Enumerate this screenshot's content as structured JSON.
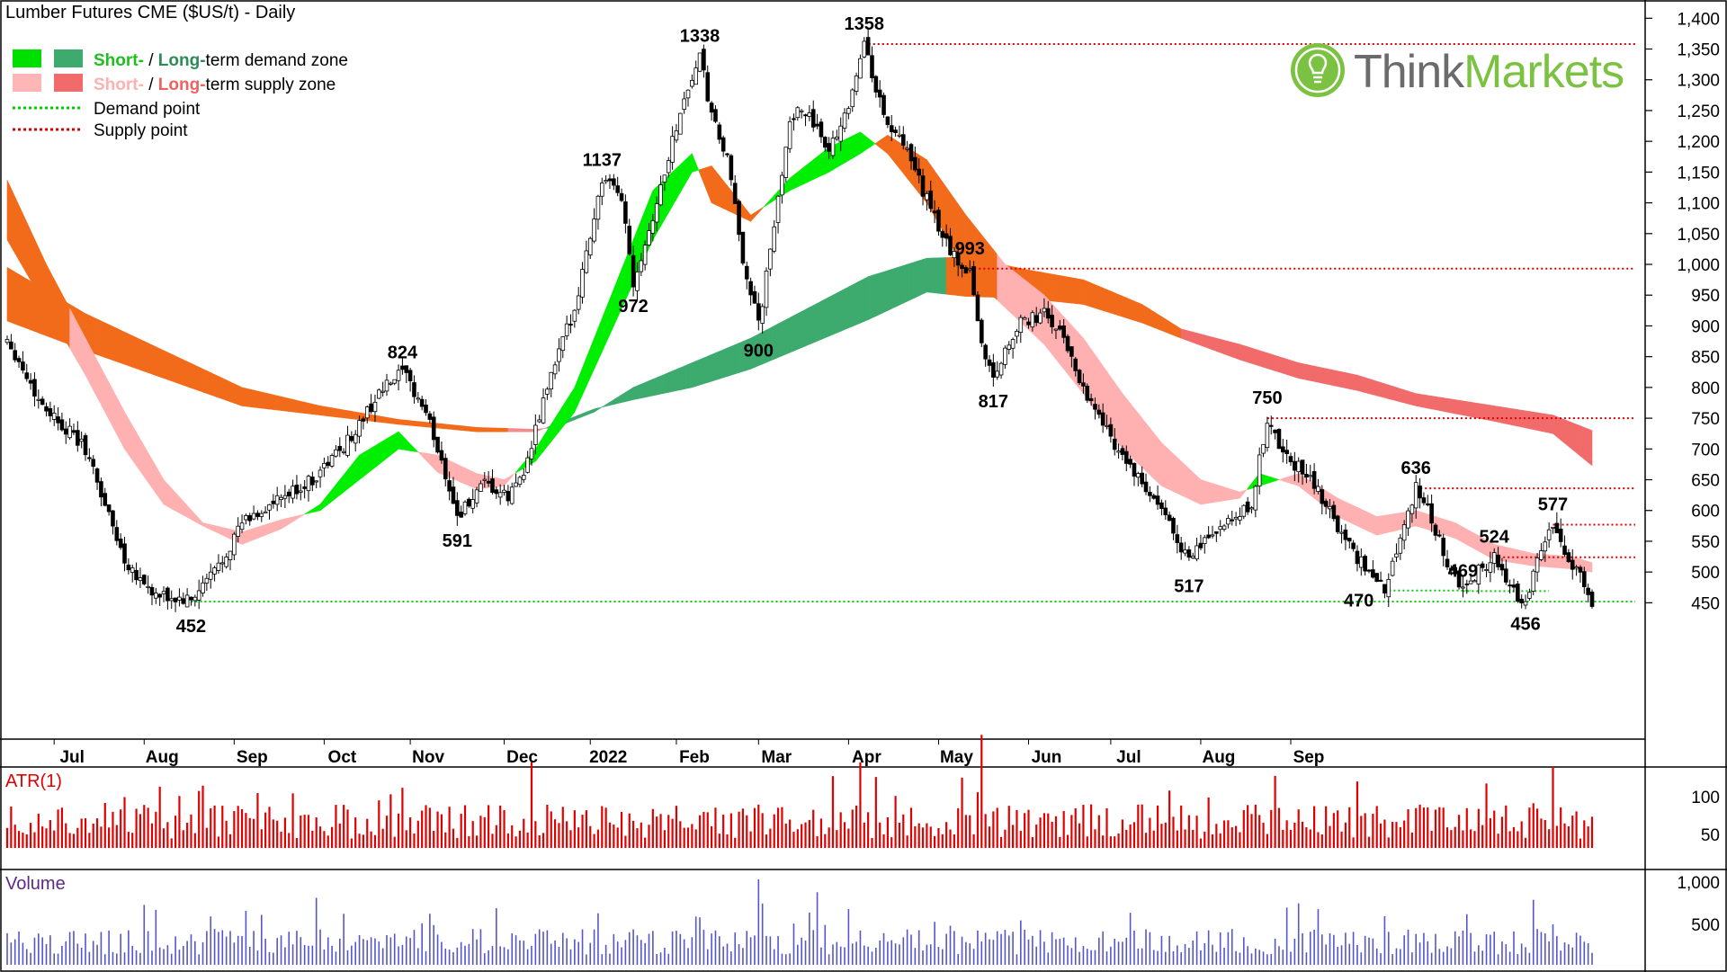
{
  "title": "Lumber Futures CME ($US/t) - Daily",
  "brand": {
    "name_part1": "Think",
    "name_part2": "Markets",
    "color1": "#6b6b6b",
    "color2": "#7cc242"
  },
  "legend": [
    {
      "swatches": [
        "#00e000",
        "#3daa6e"
      ],
      "text_a": "Short-",
      "sep": " / ",
      "text_b": "Long-",
      "rest": "term demand zone",
      "color_a": "#1fbf1f",
      "color_b": "#2e8b57"
    },
    {
      "swatches": [
        "#ffb6b6",
        "#f26b6b"
      ],
      "text_a": "Short-",
      "sep": " / ",
      "text_b": "Long-",
      "rest": "term supply zone",
      "color_a": "#ffb0b0",
      "color_b": "#f26060"
    },
    {
      "line": "demand",
      "color": "#00cc00",
      "text": "Demand point"
    },
    {
      "line": "supply",
      "color": "#dd0000",
      "text": "Supply point"
    }
  ],
  "colors": {
    "short_demand": "#00ee00",
    "long_demand": "#3daa6e",
    "short_supply": "#ffb0b0",
    "long_supply": "#f26b6b",
    "cross_orange": "#f26b1a",
    "atr": "#e00000",
    "volume": "#5555cc"
  },
  "chart_data": {
    "type": "candlestick",
    "x_labels": [
      "Jul",
      "Aug",
      "Sep",
      "Oct",
      "Nov",
      "Dec",
      "2022",
      "Feb",
      "Mar",
      "Apr",
      "May",
      "Jun",
      "Jul",
      "Aug",
      "Sep"
    ],
    "y_ticks": [
      "1,400",
      "1,350",
      "1,300",
      "1,250",
      "1,200",
      "1,150",
      "1,100",
      "1,050",
      "1,000",
      "950",
      "900",
      "850",
      "800",
      "750",
      "700",
      "650",
      "600",
      "550",
      "500",
      "450"
    ],
    "ylim": [
      410,
      1400
    ],
    "price_path": [
      [
        0,
        880
      ],
      [
        8,
        780
      ],
      [
        20,
        700
      ],
      [
        30,
        520
      ],
      [
        38,
        460
      ],
      [
        47,
        452
      ],
      [
        55,
        520
      ],
      [
        60,
        580
      ],
      [
        68,
        610
      ],
      [
        78,
        650
      ],
      [
        88,
        720
      ],
      [
        95,
        790
      ],
      [
        101,
        824
      ],
      [
        107,
        760
      ],
      [
        112,
        660
      ],
      [
        115,
        591
      ],
      [
        122,
        640
      ],
      [
        128,
        620
      ],
      [
        133,
        680
      ],
      [
        138,
        800
      ],
      [
        145,
        930
      ],
      [
        152,
        1137
      ],
      [
        157,
        1110
      ],
      [
        160,
        972
      ],
      [
        166,
        1100
      ],
      [
        172,
        1250
      ],
      [
        177,
        1338
      ],
      [
        180,
        1240
      ],
      [
        184,
        1170
      ],
      [
        188,
        1010
      ],
      [
        192,
        900
      ],
      [
        196,
        1060
      ],
      [
        200,
        1240
      ],
      [
        205,
        1250
      ],
      [
        209,
        1180
      ],
      [
        214,
        1240
      ],
      [
        219,
        1358
      ],
      [
        224,
        1240
      ],
      [
        230,
        1180
      ],
      [
        238,
        1060
      ],
      [
        243,
        1000
      ],
      [
        246,
        993
      ],
      [
        249,
        870
      ],
      [
        252,
        817
      ],
      [
        258,
        900
      ],
      [
        265,
        920
      ],
      [
        270,
        880
      ],
      [
        275,
        800
      ],
      [
        282,
        720
      ],
      [
        290,
        640
      ],
      [
        297,
        580
      ],
      [
        302,
        517
      ],
      [
        307,
        560
      ],
      [
        313,
        580
      ],
      [
        318,
        610
      ],
      [
        322,
        750
      ],
      [
        326,
        690
      ],
      [
        332,
        660
      ],
      [
        338,
        600
      ],
      [
        343,
        540
      ],
      [
        348,
        500
      ],
      [
        352,
        470
      ],
      [
        356,
        560
      ],
      [
        360,
        636
      ],
      [
        364,
        590
      ],
      [
        368,
        510
      ],
      [
        372,
        469
      ],
      [
        376,
        505
      ],
      [
        380,
        524
      ],
      [
        384,
        470
      ],
      [
        388,
        456
      ],
      [
        392,
        540
      ],
      [
        395,
        577
      ],
      [
        398,
        520
      ],
      [
        402,
        500
      ],
      [
        405,
        452
      ]
    ],
    "annotations": [
      {
        "label": "452",
        "x": 47,
        "y": 452,
        "pos": "below"
      },
      {
        "label": "824",
        "x": 101,
        "y": 824,
        "pos": "above"
      },
      {
        "label": "591",
        "x": 115,
        "y": 591,
        "pos": "below"
      },
      {
        "label": "1137",
        "x": 152,
        "y": 1137,
        "pos": "above"
      },
      {
        "label": "972",
        "x": 160,
        "y": 972,
        "pos": "below"
      },
      {
        "label": "1338",
        "x": 177,
        "y": 1338,
        "pos": "above"
      },
      {
        "label": "900",
        "x": 192,
        "y": 900,
        "pos": "below"
      },
      {
        "label": "1358",
        "x": 219,
        "y": 1358,
        "pos": "above"
      },
      {
        "label": "993",
        "x": 246,
        "y": 993,
        "pos": "above"
      },
      {
        "label": "817",
        "x": 252,
        "y": 817,
        "pos": "below"
      },
      {
        "label": "517",
        "x": 302,
        "y": 517,
        "pos": "below"
      },
      {
        "label": "750",
        "x": 322,
        "y": 750,
        "pos": "above"
      },
      {
        "label": "470",
        "x": 352,
        "y": 470,
        "pos": "left"
      },
      {
        "label": "636",
        "x": 360,
        "y": 636,
        "pos": "above"
      },
      {
        "label": "469",
        "x": 372,
        "y": 469,
        "pos": "above"
      },
      {
        "label": "524",
        "x": 380,
        "y": 524,
        "pos": "above"
      },
      {
        "label": "456",
        "x": 388,
        "y": 456,
        "pos": "below"
      },
      {
        "label": "577",
        "x": 395,
        "y": 577,
        "pos": "above"
      }
    ],
    "supply_points": [
      {
        "value": 1358,
        "from_x": 219
      },
      {
        "value": 993,
        "from_x": 246
      },
      {
        "value": 750,
        "from_x": 322
      },
      {
        "value": 636,
        "from_x": 360
      },
      {
        "value": 577,
        "from_x": 395
      },
      {
        "value": 524,
        "from_x": 380
      }
    ],
    "demand_points": [
      {
        "value": 452,
        "from_x": 47
      },
      {
        "value": 470,
        "from_x": 352
      },
      {
        "value": 469,
        "from_x": 372
      }
    ],
    "long_band": [
      [
        0,
        995,
        908
      ],
      [
        20,
        920,
        860
      ],
      [
        40,
        860,
        815
      ],
      [
        60,
        800,
        770
      ],
      [
        80,
        770,
        755
      ],
      [
        100,
        748,
        740
      ],
      [
        120,
        735,
        728
      ],
      [
        135,
        732,
        728
      ],
      [
        140,
        735,
        740
      ],
      [
        150,
        760,
        765
      ],
      [
        160,
        800,
        780
      ],
      [
        175,
        840,
        800
      ],
      [
        190,
        880,
        830
      ],
      [
        205,
        930,
        870
      ],
      [
        220,
        980,
        910
      ],
      [
        235,
        1010,
        955
      ],
      [
        245,
        1012,
        948
      ],
      [
        260,
        992,
        945
      ],
      [
        275,
        975,
        935
      ],
      [
        290,
        935,
        905
      ],
      [
        300,
        895,
        880
      ],
      [
        315,
        870,
        845
      ],
      [
        330,
        840,
        815
      ],
      [
        345,
        820,
        795
      ],
      [
        360,
        790,
        770
      ],
      [
        380,
        770,
        745
      ],
      [
        395,
        755,
        725
      ],
      [
        405,
        730,
        673
      ]
    ],
    "short_band": [
      [
        0,
        1137,
        1040
      ],
      [
        10,
        1000,
        930
      ],
      [
        20,
        880,
        820
      ],
      [
        30,
        760,
        700
      ],
      [
        40,
        650,
        610
      ],
      [
        50,
        580,
        575
      ],
      [
        60,
        565,
        545
      ],
      [
        70,
        585,
        570
      ],
      [
        80,
        600,
        610
      ],
      [
        90,
        650,
        690
      ],
      [
        100,
        700,
        728
      ],
      [
        110,
        690,
        662
      ],
      [
        120,
        660,
        635
      ],
      [
        127,
        650,
        640
      ],
      [
        135,
        680,
        700
      ],
      [
        145,
        760,
        800
      ],
      [
        155,
        900,
        960
      ],
      [
        165,
        1040,
        1120
      ],
      [
        175,
        1150,
        1180
      ],
      [
        180,
        1160,
        1100
      ],
      [
        190,
        1080,
        1070
      ],
      [
        200,
        1120,
        1140
      ],
      [
        210,
        1150,
        1190
      ],
      [
        218,
        1180,
        1215
      ],
      [
        225,
        1210,
        1180
      ],
      [
        235,
        1170,
        1100
      ],
      [
        245,
        1080,
        990
      ],
      [
        255,
        1000,
        930
      ],
      [
        265,
        950,
        870
      ],
      [
        275,
        880,
        790
      ],
      [
        285,
        790,
        700
      ],
      [
        295,
        710,
        640
      ],
      [
        305,
        650,
        610
      ],
      [
        315,
        630,
        620
      ],
      [
        320,
        640,
        660
      ],
      [
        330,
        660,
        640
      ],
      [
        340,
        620,
        590
      ],
      [
        350,
        590,
        560
      ],
      [
        360,
        600,
        575
      ],
      [
        370,
        580,
        555
      ],
      [
        380,
        545,
        520
      ],
      [
        390,
        530,
        510
      ],
      [
        400,
        525,
        505
      ],
      [
        405,
        515,
        500
      ]
    ],
    "atr": {
      "label": "ATR(1)",
      "ticks": [
        "100",
        "50"
      ],
      "ylim": [
        0,
        150
      ]
    },
    "volume": {
      "label": "Volume",
      "ticks": [
        "1,000",
        "500"
      ],
      "ylim": [
        0,
        1250
      ]
    }
  }
}
